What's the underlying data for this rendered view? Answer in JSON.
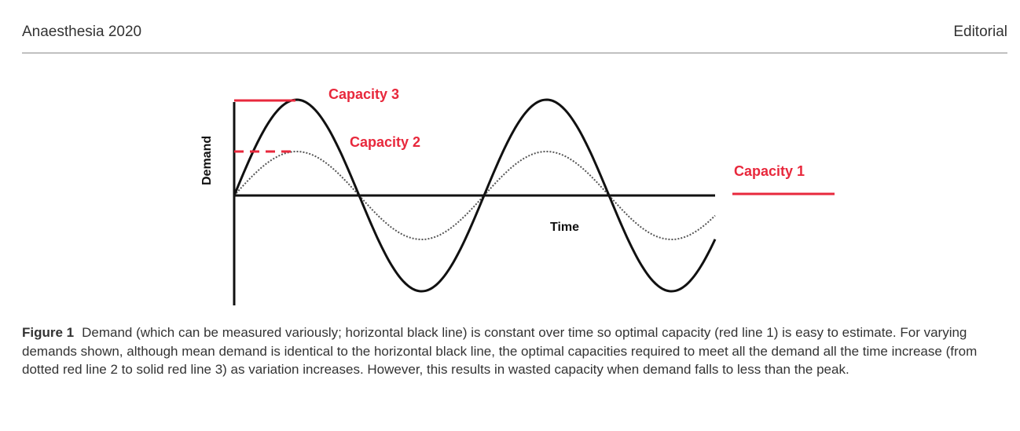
{
  "header": {
    "journal": "Anaesthesia 2020",
    "section": "Editorial"
  },
  "figure": {
    "capacity1_label": "Capacity 1",
    "capacity2_label": "Capacity 2",
    "capacity3_label": "Capacity 3",
    "y_label": "Demand",
    "x_label": "Time",
    "red": "#e8283c"
  },
  "caption": {
    "label": "Figure 1",
    "text": "Demand (which can be measured variously; horizontal black line) is constant over time so optimal capacity (red line 1) is easy to estimate. For varying demands shown, although mean demand is identical to the horizontal black line, the optimal capacities required to meet all the demand all the time increase (from dotted red line 2 to solid red line 3) as variation increases. However, this results in wasted capacity when demand falls to less than the peak."
  }
}
